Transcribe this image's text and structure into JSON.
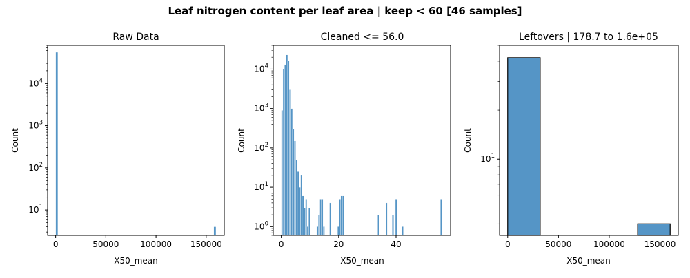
{
  "suptitle": "Leaf nitrogen content per leaf area | keep < 60 [46 samples]",
  "colors": {
    "bar": "#4c8fc3",
    "bar_edge_dark": "#000000",
    "bar_edge_light": "#ffffff",
    "axis": "#000000"
  },
  "chart_data": [
    {
      "type": "bar",
      "title": "Raw Data",
      "xlabel": "X50_mean",
      "ylabel": "Count",
      "yscale": "log",
      "xlim": [
        -8000,
        168000
      ],
      "ylim": [
        2.5,
        80000
      ],
      "xticks": [
        0,
        50000,
        100000,
        150000
      ],
      "xtick_labels": [
        "0",
        "50000",
        "100000",
        "150000"
      ],
      "yticks": [
        10,
        100,
        1000,
        10000
      ],
      "ytick_labels": [
        "10^1",
        "10^2",
        "10^3",
        "10^4"
      ],
      "bars": [
        {
          "x0": 0,
          "x1": 2250,
          "count": 55000
        },
        {
          "x0": 157500,
          "x1": 159750,
          "count": 4
        }
      ]
    },
    {
      "type": "bar",
      "title": "Cleaned <= 56.0",
      "xlabel": "X50_mean",
      "ylabel": "Count",
      "yscale": "log",
      "xlim": [
        -2.8,
        59
      ],
      "ylim": [
        0.6,
        40000
      ],
      "xticks": [
        0,
        20,
        40
      ],
      "xtick_labels": [
        "0",
        "20",
        "40"
      ],
      "yticks": [
        1,
        10,
        100,
        1000,
        10000
      ],
      "ytick_labels": [
        "10^0",
        "10^1",
        "10^2",
        "10^3",
        "10^4"
      ],
      "bin_width": 0.56,
      "bins": [
        {
          "x": 0.0,
          "count": 900
        },
        {
          "x": 0.56,
          "count": 10000
        },
        {
          "x": 1.12,
          "count": 13000
        },
        {
          "x": 1.68,
          "count": 23000
        },
        {
          "x": 2.24,
          "count": 16000
        },
        {
          "x": 2.8,
          "count": 3000
        },
        {
          "x": 3.36,
          "count": 1000
        },
        {
          "x": 3.92,
          "count": 300
        },
        {
          "x": 4.48,
          "count": 150
        },
        {
          "x": 5.04,
          "count": 50
        },
        {
          "x": 5.6,
          "count": 25
        },
        {
          "x": 6.16,
          "count": 10
        },
        {
          "x": 6.72,
          "count": 20
        },
        {
          "x": 7.28,
          "count": 6
        },
        {
          "x": 7.84,
          "count": 3
        },
        {
          "x": 8.4,
          "count": 5
        },
        {
          "x": 8.96,
          "count": 1
        },
        {
          "x": 9.52,
          "count": 3
        },
        {
          "x": 12.32,
          "count": 1
        },
        {
          "x": 12.88,
          "count": 2
        },
        {
          "x": 13.44,
          "count": 5
        },
        {
          "x": 14.0,
          "count": 5
        },
        {
          "x": 14.56,
          "count": 1
        },
        {
          "x": 16.8,
          "count": 4
        },
        {
          "x": 19.6,
          "count": 1
        },
        {
          "x": 20.16,
          "count": 5
        },
        {
          "x": 20.72,
          "count": 6
        },
        {
          "x": 21.28,
          "count": 6
        },
        {
          "x": 33.6,
          "count": 2
        },
        {
          "x": 36.4,
          "count": 4
        },
        {
          "x": 38.64,
          "count": 2
        },
        {
          "x": 39.76,
          "count": 5
        },
        {
          "x": 42.0,
          "count": 1
        },
        {
          "x": 55.44,
          "count": 5
        }
      ]
    },
    {
      "type": "bar",
      "title": "Leftovers | 178.7 to 1.6e+05",
      "xlabel": "X50_mean",
      "ylabel": "Count",
      "yscale": "log",
      "xlim": [
        -8000,
        168000
      ],
      "ylim": [
        3.4,
        50
      ],
      "xticks": [
        0,
        50000,
        100000,
        150000
      ],
      "xtick_labels": [
        "0",
        "50000",
        "100000",
        "150000"
      ],
      "yticks": [
        10
      ],
      "ytick_labels": [
        "10^1"
      ],
      "bars": [
        {
          "x0": 0,
          "x1": 32000,
          "count": 42
        },
        {
          "x0": 128000,
          "x1": 160000,
          "count": 4
        }
      ]
    }
  ]
}
